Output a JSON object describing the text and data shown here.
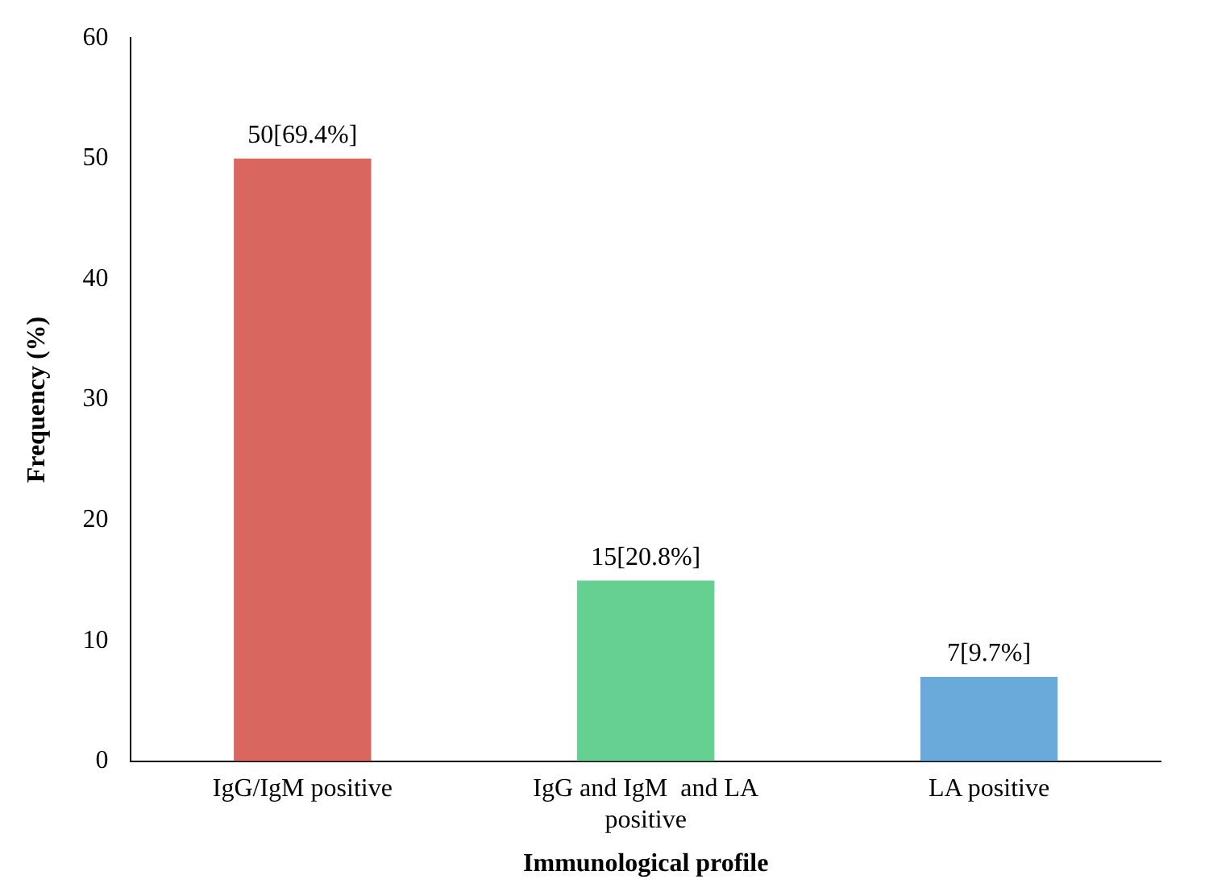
{
  "chart_data": {
    "type": "bar",
    "xlabel": "Immunological profile",
    "ylabel": "Frequency (%)",
    "categories": [
      "IgG/IgM positive",
      "IgG and IgM  and LA positive",
      "LA positive"
    ],
    "values": [
      50,
      15,
      7
    ],
    "colors": [
      "#d9675f",
      "#66cf92",
      "#6aaadb"
    ],
    "value_labels": [
      "50[69.4%]",
      "15[20.8%]",
      "7[9.7%]"
    ],
    "ylim": [
      0,
      60
    ],
    "yticks": [
      0,
      10,
      20,
      30,
      40,
      50,
      60
    ],
    "grid": false,
    "legend": false
  }
}
